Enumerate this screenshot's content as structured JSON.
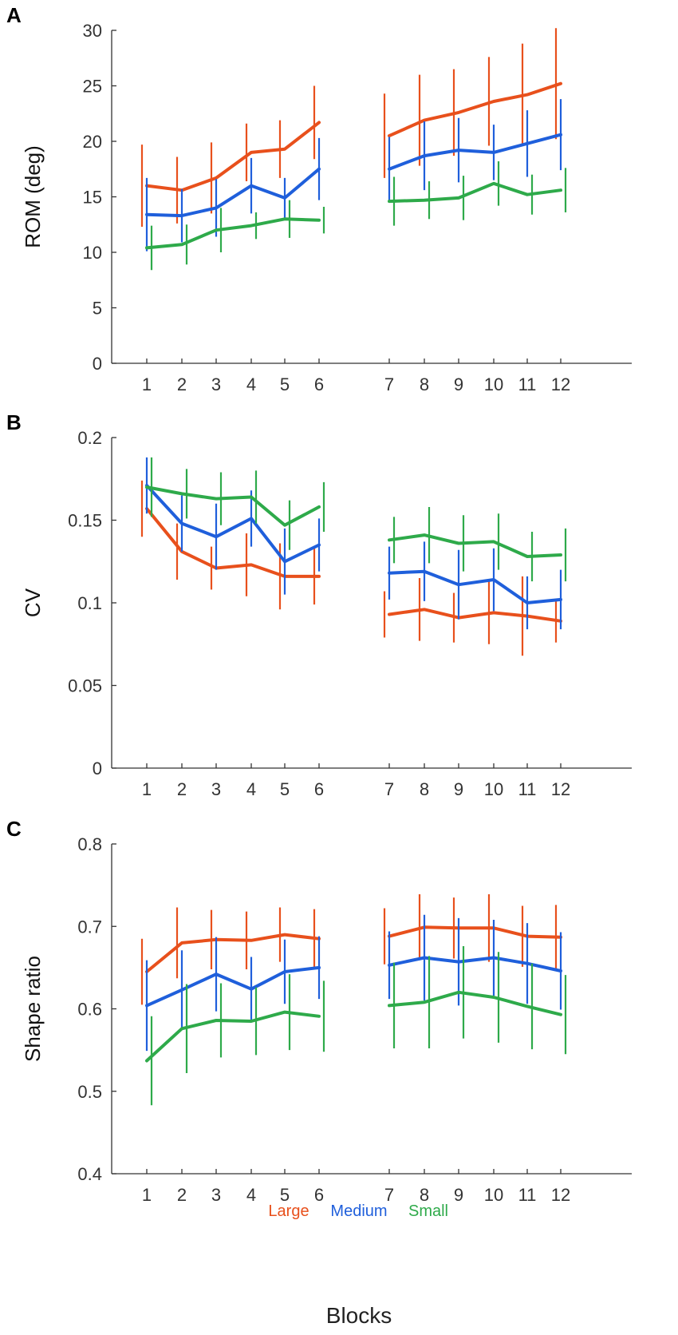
{
  "figure": {
    "xlabel": "Blocks",
    "legend": [
      {
        "name": "Large",
        "color": "#E8501C"
      },
      {
        "name": "Medium",
        "color": "#1F5FDB"
      },
      {
        "name": "Small",
        "color": "#2EAA4A"
      }
    ]
  },
  "chart_data": [
    {
      "type": "line",
      "panel_label": "A",
      "ylabel": "ROM (deg)",
      "ylim": [
        0,
        30
      ],
      "yticks": [
        0,
        5,
        10,
        15,
        20,
        25,
        30
      ],
      "ytick_labels": [
        "0",
        "5",
        "10",
        "15",
        "20",
        "25",
        "30"
      ],
      "categories": [
        "1",
        "2",
        "3",
        "4",
        "5",
        "6",
        "7",
        "8",
        "9",
        "10",
        "11",
        "12"
      ],
      "segments": [
        [
          0,
          5
        ],
        [
          6,
          11
        ]
      ],
      "series": [
        {
          "name": "Large",
          "color": "#E8501C",
          "values": [
            16.0,
            15.6,
            16.7,
            19.0,
            19.3,
            21.7,
            20.5,
            21.9,
            22.6,
            23.6,
            24.2,
            25.2
          ],
          "errors": [
            3.7,
            3.0,
            3.2,
            2.6,
            2.6,
            3.3,
            3.8,
            4.1,
            3.9,
            4.0,
            4.6,
            5.0
          ]
        },
        {
          "name": "Medium",
          "color": "#1F5FDB",
          "values": [
            13.4,
            13.3,
            14.0,
            16.0,
            14.9,
            17.5,
            17.5,
            18.7,
            19.2,
            19.0,
            19.8,
            20.6
          ],
          "errors": [
            3.3,
            2.4,
            2.6,
            2.5,
            1.8,
            2.8,
            2.9,
            3.1,
            2.9,
            2.5,
            3.0,
            3.2
          ]
        },
        {
          "name": "Small",
          "color": "#2EAA4A",
          "values": [
            10.4,
            10.7,
            12.0,
            12.4,
            13.0,
            12.9,
            14.6,
            14.7,
            14.9,
            16.2,
            15.2,
            15.6
          ],
          "errors": [
            2.0,
            1.8,
            2.0,
            1.2,
            1.7,
            1.2,
            2.2,
            1.7,
            2.0,
            2.0,
            1.8,
            2.0
          ]
        }
      ]
    },
    {
      "type": "line",
      "panel_label": "B",
      "ylabel": "CV",
      "ylim": [
        0,
        0.2
      ],
      "yticks": [
        0,
        0.05,
        0.1,
        0.15,
        0.2
      ],
      "ytick_labels": [
        "0",
        "0.05",
        "0.1",
        "0.15",
        "0.2"
      ],
      "categories": [
        "1",
        "2",
        "3",
        "4",
        "5",
        "6",
        "7",
        "8",
        "9",
        "10",
        "11",
        "12"
      ],
      "segments": [
        [
          0,
          5
        ],
        [
          6,
          11
        ]
      ],
      "series": [
        {
          "name": "Large",
          "color": "#E8501C",
          "values": [
            0.157,
            0.131,
            0.121,
            0.123,
            0.116,
            0.116,
            0.093,
            0.096,
            0.091,
            0.094,
            0.092,
            0.089
          ],
          "errors": [
            0.017,
            0.017,
            0.013,
            0.019,
            0.02,
            0.017,
            0.014,
            0.019,
            0.015,
            0.019,
            0.024,
            0.013
          ]
        },
        {
          "name": "Medium",
          "color": "#1F5FDB",
          "values": [
            0.171,
            0.148,
            0.14,
            0.151,
            0.125,
            0.135,
            0.118,
            0.119,
            0.111,
            0.114,
            0.1,
            0.102
          ],
          "errors": [
            0.017,
            0.017,
            0.02,
            0.017,
            0.02,
            0.016,
            0.016,
            0.018,
            0.021,
            0.019,
            0.016,
            0.018
          ]
        },
        {
          "name": "Small",
          "color": "#2EAA4A",
          "values": [
            0.17,
            0.166,
            0.163,
            0.164,
            0.147,
            0.158,
            0.138,
            0.141,
            0.136,
            0.137,
            0.128,
            0.129
          ],
          "errors": [
            0.018,
            0.015,
            0.016,
            0.016,
            0.015,
            0.015,
            0.014,
            0.017,
            0.017,
            0.017,
            0.015,
            0.016
          ]
        }
      ]
    },
    {
      "type": "line",
      "panel_label": "C",
      "ylabel": "Shape ratio",
      "ylim": [
        0.4,
        0.8
      ],
      "yticks": [
        0.4,
        0.5,
        0.6,
        0.7,
        0.8
      ],
      "ytick_labels": [
        "0.4",
        "0.5",
        "0.6",
        "0.7",
        "0.8"
      ],
      "categories": [
        "1",
        "2",
        "3",
        "4",
        "5",
        "6",
        "7",
        "8",
        "9",
        "10",
        "11",
        "12"
      ],
      "segments": [
        [
          0,
          5
        ],
        [
          6,
          11
        ]
      ],
      "series": [
        {
          "name": "Large",
          "color": "#E8501C",
          "values": [
            0.645,
            0.68,
            0.684,
            0.683,
            0.69,
            0.685,
            0.688,
            0.699,
            0.698,
            0.698,
            0.688,
            0.687
          ],
          "errors": [
            0.04,
            0.043,
            0.036,
            0.035,
            0.033,
            0.036,
            0.034,
            0.04,
            0.037,
            0.041,
            0.037,
            0.039
          ]
        },
        {
          "name": "Medium",
          "color": "#1F5FDB",
          "values": [
            0.604,
            0.623,
            0.642,
            0.624,
            0.645,
            0.65,
            0.653,
            0.662,
            0.657,
            0.662,
            0.655,
            0.646
          ],
          "errors": [
            0.055,
            0.048,
            0.045,
            0.039,
            0.039,
            0.038,
            0.041,
            0.052,
            0.053,
            0.046,
            0.049,
            0.047
          ]
        },
        {
          "name": "Small",
          "color": "#2EAA4A",
          "values": [
            0.537,
            0.576,
            0.586,
            0.585,
            0.596,
            0.591,
            0.604,
            0.608,
            0.62,
            0.614,
            0.603,
            0.593
          ],
          "errors": [
            0.054,
            0.054,
            0.045,
            0.041,
            0.046,
            0.043,
            0.052,
            0.056,
            0.056,
            0.055,
            0.052,
            0.048
          ]
        }
      ]
    }
  ]
}
